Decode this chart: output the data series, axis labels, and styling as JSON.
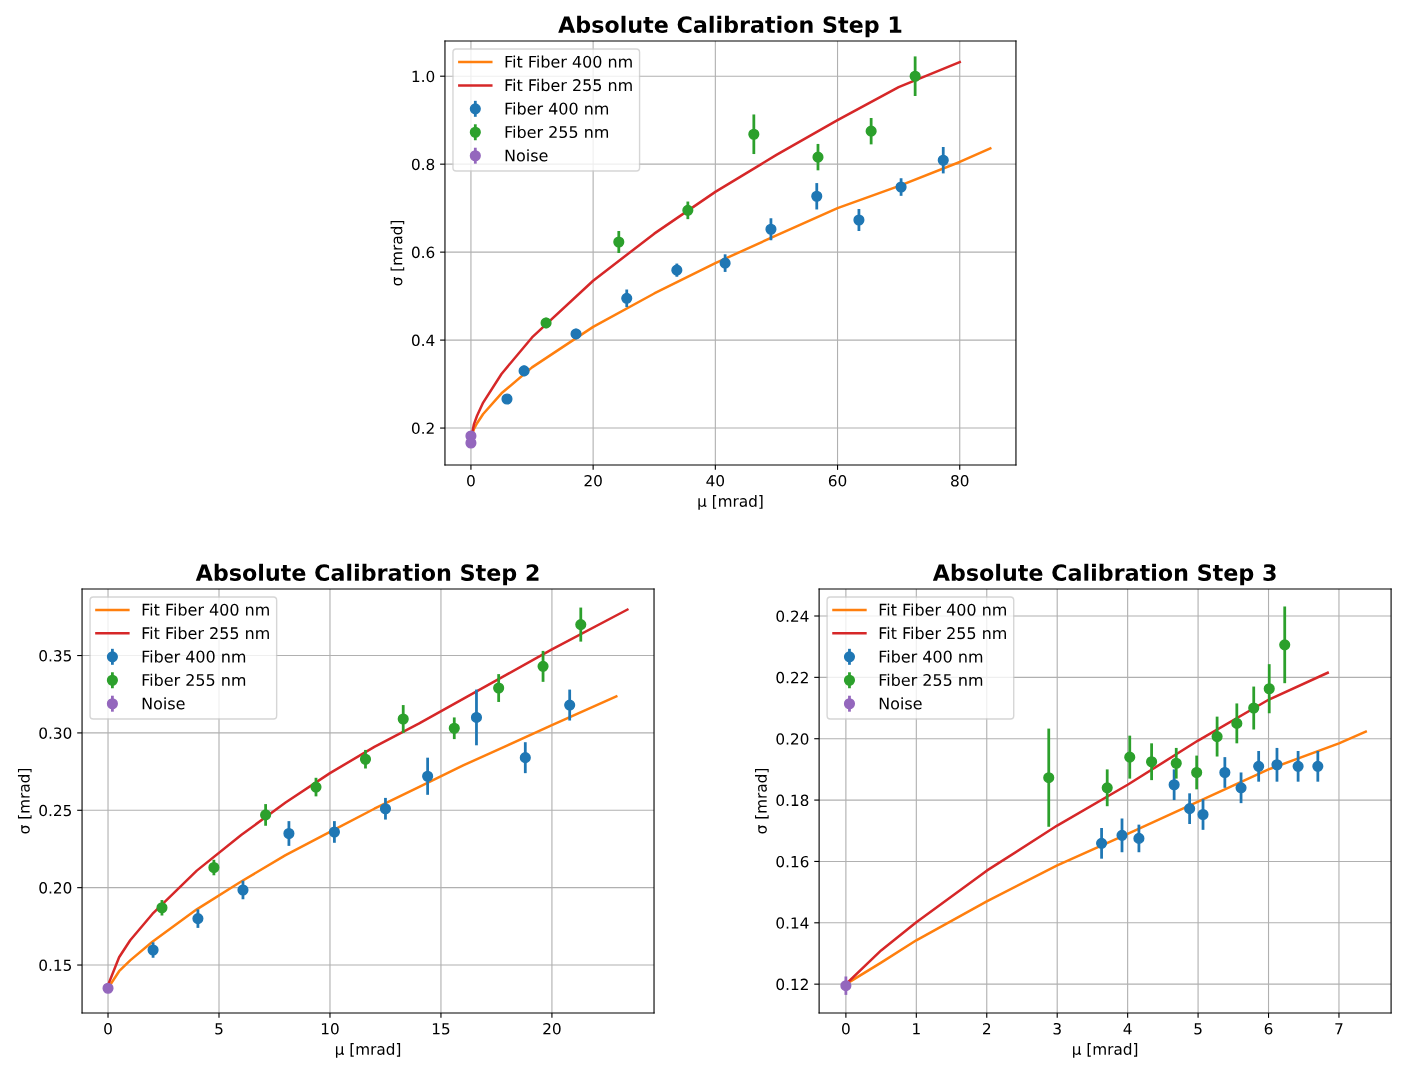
{
  "chart_data": [
    {
      "type": "scatter",
      "title": "Absolute Calibration Step 1",
      "xlabel": "μ [mrad]",
      "ylabel": "σ [mrad]",
      "xlim": [
        -4.25,
        89.2
      ],
      "ylim": [
        0.116,
        1.08
      ],
      "xticks": [
        0,
        20,
        40,
        60,
        80
      ],
      "yticks": [
        0.2,
        0.4,
        0.6,
        0.8,
        {
          "value": 1.0,
          "label": "1.0"
        }
      ],
      "grid": true,
      "legend": "top left",
      "series": [
        {
          "name": "Fit Fiber 400 nm",
          "type": "line",
          "line_style": "solid",
          "color": "#ff7f0e",
          "x": [
            0,
            0.5,
            1,
            2,
            5,
            10,
            20,
            30,
            40,
            50,
            60,
            70,
            80,
            85
          ],
          "values": [
            0.175,
            0.198,
            0.211,
            0.232,
            0.279,
            0.338,
            0.43,
            0.506,
            0.575,
            0.638,
            0.7,
            0.75,
            0.805,
            0.836
          ]
        },
        {
          "name": "Fit Fiber 255 nm",
          "type": "line",
          "line_style": "solid",
          "color": "#d62728",
          "x": [
            0,
            0.5,
            1,
            2,
            5,
            10,
            20,
            30,
            40,
            50,
            60,
            70,
            80
          ],
          "values": [
            0.175,
            0.209,
            0.228,
            0.258,
            0.323,
            0.406,
            0.535,
            0.642,
            0.737,
            0.821,
            0.9,
            0.975,
            1.032
          ]
        },
        {
          "name": "Fiber 400 nm",
          "type": "scatter",
          "marker": "circle",
          "color": "#1f77b4",
          "x": [
            5.9,
            8.7,
            17.2,
            25.5,
            33.7,
            41.6,
            49.1,
            56.6,
            63.5,
            70.4,
            77.3
          ],
          "values": [
            0.266,
            0.33,
            0.414,
            0.495,
            0.559,
            0.575,
            0.652,
            0.727,
            0.673,
            0.748,
            0.809
          ],
          "errors": [
            0.008,
            0.012,
            0.012,
            0.02,
            0.015,
            0.02,
            0.025,
            0.03,
            0.025,
            0.02,
            0.03
          ]
        },
        {
          "name": "Fiber 255 nm",
          "type": "scatter",
          "marker": "circle",
          "color": "#2ca02c",
          "x": [
            12.3,
            24.2,
            35.5,
            46.3,
            56.8,
            65.5,
            72.7
          ],
          "values": [
            0.439,
            0.623,
            0.695,
            0.868,
            0.816,
            0.875,
            1.0
          ],
          "errors": [
            0.012,
            0.025,
            0.02,
            0.045,
            0.03,
            0.03,
            0.045
          ]
        },
        {
          "name": "Noise",
          "type": "scatter",
          "marker": "circle",
          "color": "#9467bd",
          "x": [
            0,
            0
          ],
          "values": [
            0.182,
            0.166
          ],
          "errors": [
            0.005,
            0.005
          ]
        }
      ]
    },
    {
      "type": "scatter",
      "title": "Absolute Calibration Step 2",
      "xlabel": "μ [mrad]",
      "ylabel": "σ [mrad]",
      "xlim": [
        -1.17,
        24.6
      ],
      "ylim": [
        0.119,
        0.393
      ],
      "xticks": [
        0,
        5,
        10,
        15,
        20
      ],
      "yticks": [
        0.15,
        {
          "value": 0.2,
          "label": "0.20"
        },
        0.25,
        {
          "value": 0.3,
          "label": "0.30"
        },
        0.35
      ],
      "grid": true,
      "legend": "top left",
      "series": [
        {
          "name": "Fit Fiber 400 nm",
          "type": "line",
          "line_style": "solid",
          "color": "#ff7f0e",
          "x": [
            0,
            0.5,
            1,
            2,
            4,
            6,
            8,
            10,
            12,
            14,
            16,
            18,
            20,
            22.9
          ],
          "values": [
            0.135,
            0.146,
            0.153,
            0.165,
            0.186,
            0.204,
            0.221,
            0.236,
            0.251,
            0.265,
            0.279,
            0.292,
            0.305,
            0.3236
          ]
        },
        {
          "name": "Fit Fiber 255 nm",
          "type": "line",
          "line_style": "solid",
          "color": "#d62728",
          "x": [
            0,
            0.5,
            1,
            2,
            4,
            6,
            8,
            10,
            12,
            14,
            16,
            18,
            20,
            23.4
          ],
          "values": [
            0.137,
            0.155,
            0.166,
            0.183,
            0.211,
            0.234,
            0.255,
            0.274,
            0.291,
            0.306,
            0.322,
            0.338,
            0.354,
            0.3797
          ]
        },
        {
          "name": "Fiber 400 nm",
          "type": "scatter",
          "marker": "circle",
          "color": "#1f77b4",
          "x": [
            2.03,
            4.05,
            6.08,
            8.15,
            10.2,
            12.5,
            14.4,
            16.6,
            18.8,
            20.8
          ],
          "values": [
            0.1597,
            0.18,
            0.1985,
            0.235,
            0.236,
            0.251,
            0.272,
            0.31,
            0.284,
            0.318
          ],
          "errors": [
            0.005,
            0.006,
            0.006,
            0.008,
            0.007,
            0.007,
            0.012,
            0.018,
            0.01,
            0.01
          ]
        },
        {
          "name": "Fiber 255 nm",
          "type": "scatter",
          "marker": "circle",
          "color": "#2ca02c",
          "x": [
            2.43,
            4.77,
            7.1,
            9.37,
            11.6,
            13.3,
            15.6,
            17.6,
            19.6,
            21.3
          ],
          "values": [
            0.187,
            0.213,
            0.247,
            0.265,
            0.283,
            0.309,
            0.303,
            0.329,
            0.343,
            0.37
          ],
          "errors": [
            0.005,
            0.005,
            0.007,
            0.006,
            0.006,
            0.009,
            0.007,
            0.009,
            0.01,
            0.011
          ]
        },
        {
          "name": "Noise",
          "type": "scatter",
          "marker": "circle",
          "color": "#9467bd",
          "x": [
            0
          ],
          "values": [
            0.135
          ],
          "errors": [
            0.002
          ]
        }
      ]
    },
    {
      "type": "scatter",
      "title": "Absolute Calibration Step 3",
      "xlabel": "μ [mrad]",
      "ylabel": "σ [mrad]",
      "xlim": [
        -0.38,
        7.74
      ],
      "ylim": [
        0.1106,
        0.2488
      ],
      "xticks": [
        0,
        1,
        2,
        3,
        4,
        5,
        6,
        7
      ],
      "yticks": [
        0.12,
        0.14,
        0.16,
        0.18,
        {
          "value": 0.2,
          "label": "0.20"
        },
        0.22,
        0.24
      ],
      "grid": true,
      "legend": "top left",
      "series": [
        {
          "name": "Fit Fiber 400 nm",
          "type": "line",
          "line_style": "solid",
          "color": "#ff7f0e",
          "x": [
            0,
            0.5,
            1,
            2,
            3,
            4,
            5,
            6,
            7,
            7.38
          ],
          "values": [
            0.12,
            0.127,
            0.1343,
            0.147,
            0.1587,
            0.169,
            0.1795,
            0.19,
            0.1985,
            0.2023
          ]
        },
        {
          "name": "Fit Fiber 255 nm",
          "type": "line",
          "line_style": "solid",
          "color": "#d62728",
          "x": [
            0,
            0.5,
            1,
            2,
            3,
            4,
            5,
            6,
            6.84
          ],
          "values": [
            0.12,
            0.131,
            0.1402,
            0.157,
            0.1717,
            0.185,
            0.1994,
            0.2127,
            0.2215
          ]
        },
        {
          "name": "Fiber 400 nm",
          "type": "scatter",
          "marker": "circle",
          "color": "#1f77b4",
          "x": [
            3.63,
            3.92,
            4.16,
            4.66,
            4.88,
            5.07,
            5.38,
            5.61,
            5.86,
            6.12,
            6.42,
            6.7
          ],
          "values": [
            0.1659,
            0.1685,
            0.1675,
            0.185,
            0.1772,
            0.1753,
            0.189,
            0.184,
            0.191,
            0.1915,
            0.191,
            0.191
          ],
          "errors": [
            0.005,
            0.0055,
            0.0045,
            0.005,
            0.005,
            0.005,
            0.005,
            0.005,
            0.005,
            0.0055,
            0.005,
            0.005
          ]
        },
        {
          "name": "Fiber 255 nm",
          "type": "scatter",
          "marker": "circle",
          "color": "#2ca02c",
          "x": [
            2.88,
            3.71,
            4.03,
            4.34,
            4.69,
            4.98,
            5.27,
            5.55,
            5.79,
            6.01,
            6.23
          ],
          "values": [
            0.1873,
            0.184,
            0.194,
            0.1925,
            0.192,
            0.189,
            0.2007,
            0.205,
            0.21,
            0.2163,
            0.2306
          ],
          "errors": [
            0.016,
            0.006,
            0.007,
            0.006,
            0.005,
            0.0055,
            0.0065,
            0.0065,
            0.007,
            0.008,
            0.0125
          ]
        },
        {
          "name": "Noise",
          "type": "scatter",
          "marker": "circle",
          "color": "#9467bd",
          "x": [
            0
          ],
          "values": [
            0.1195
          ],
          "errors": [
            0.003
          ]
        }
      ]
    }
  ]
}
